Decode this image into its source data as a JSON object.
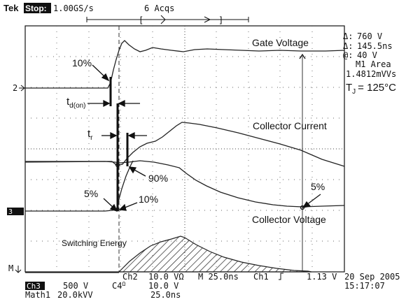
{
  "header": {
    "brand": "Tek",
    "run_state": "Stop:",
    "sample_rate": "1.00GS/s",
    "acquisitions": "6 Acqs"
  },
  "measurements": {
    "delta_v": "760 V",
    "delta_t": "145.5ns",
    "at_value": "40 V",
    "area_label": "M1 Area",
    "area_value": "1.4812mVVs",
    "tj_label": "T",
    "tj_sub": "J",
    "tj_value": "= 125°C"
  },
  "markers": {
    "ch2": "2",
    "ch3": "3",
    "math": "M"
  },
  "annotations": {
    "gate_voltage": "Gate Voltage",
    "collector_current": "Collector Current",
    "collector_voltage": "Collector Voltage",
    "switching_energy": "Switching Energy",
    "gate_10pct": "10%",
    "td_on_main": "t",
    "td_on_sub": "d(on)",
    "tr_main": "t",
    "tr_sub": "r",
    "current_90pct": "90%",
    "current_5pct": "5%",
    "current_10pct": "10%",
    "voltage_5pct": "5%"
  },
  "footer": {
    "ch2_label": "Ch2",
    "ch2_scale": "10.0 VΩ",
    "timebase": "M 25.0ns",
    "trigger_src": "Ch1",
    "trigger_level": "1.13 V",
    "date": "20 Sep 2005",
    "ch3_label": "Ch3",
    "ch3_scale": "500 V",
    "c4_label": "C4",
    "c4_sub": "Ω",
    "c4_scale": "10.0 V",
    "math_label": "Math1",
    "math_scale": "20.0kVV",
    "math_time": "25.0ns",
    "time": "15:17:07"
  }
}
